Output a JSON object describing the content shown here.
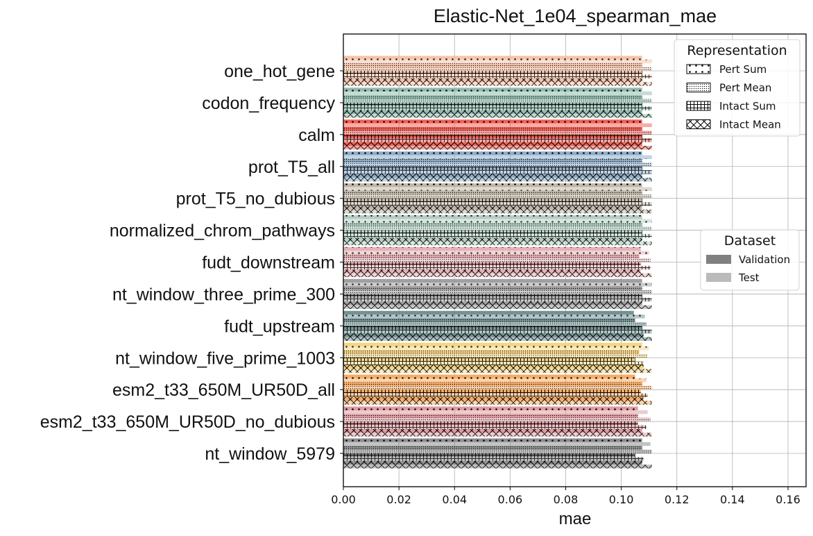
{
  "chart_data": {
    "type": "bar",
    "orientation": "horizontal",
    "title": "Elastic-Net_1e04_spearman_mae",
    "xlabel": "mae",
    "ylabel": "",
    "xlim": [
      0,
      0.1665
    ],
    "xticks": [
      "0.00",
      "0.02",
      "0.04",
      "0.06",
      "0.08",
      "0.10",
      "0.12",
      "0.14",
      "0.16"
    ],
    "xtick_values": [
      0,
      0.02,
      0.04,
      0.06,
      0.08,
      0.1,
      0.12,
      0.14,
      0.16
    ],
    "grid": true,
    "categories": [
      "one_hot_gene",
      "codon_frequency",
      "calm",
      "prot_T5_all",
      "prot_T5_no_dubious",
      "normalized_chrom_pathways",
      "fudt_downstream",
      "nt_window_three_prime_300",
      "fudt_upstream",
      "nt_window_five_prime_1003",
      "esm2_t33_650M_UR50D_all",
      "esm2_t33_650M_UR50D_no_dubious",
      "nt_window_5979"
    ],
    "category_colors": [
      "#f4b89a",
      "#7fb0a0",
      "#f0463a",
      "#7b9fbf",
      "#b7aa98",
      "#a7c7b7",
      "#e3a5a9",
      "#8f8f8f",
      "#5a7f80",
      "#f3cf70",
      "#f79d4a",
      "#d98b90",
      "#7b7b7b"
    ],
    "representations": [
      "Pert Sum",
      "Pert Mean",
      "Intact Sum",
      "Intact Mean"
    ],
    "series": [
      {
        "name": "Pert Sum",
        "dataset": "Validation",
        "values": [
          0.1075,
          0.1075,
          0.1075,
          0.1075,
          0.1075,
          0.1075,
          0.107,
          0.1075,
          0.1045,
          0.1075,
          0.105,
          0.106,
          0.1075
        ]
      },
      {
        "name": "Pert Sum",
        "dataset": "Test",
        "values": [
          0.111,
          0.111,
          0.111,
          0.111,
          0.111,
          0.111,
          0.11,
          0.111,
          0.1085,
          0.11,
          0.109,
          0.1095,
          0.1105
        ]
      },
      {
        "name": "Pert Mean",
        "dataset": "Validation",
        "values": [
          0.1075,
          0.1075,
          0.1075,
          0.1075,
          0.1075,
          0.1075,
          0.1065,
          0.1075,
          0.105,
          0.1065,
          0.1075,
          0.106,
          0.1075
        ]
      },
      {
        "name": "Pert Mean",
        "dataset": "Test",
        "values": [
          0.111,
          0.111,
          0.111,
          0.111,
          0.111,
          0.111,
          0.1105,
          0.111,
          0.109,
          0.1095,
          0.111,
          0.1105,
          0.111
        ]
      },
      {
        "name": "Intact Sum",
        "dataset": "Validation",
        "values": [
          0.1075,
          0.1075,
          0.1075,
          0.1075,
          0.1075,
          0.1075,
          0.107,
          0.1075,
          0.1075,
          0.105,
          0.107,
          0.106,
          0.105
        ]
      },
      {
        "name": "Intact Sum",
        "dataset": "Test",
        "values": [
          0.111,
          0.111,
          0.111,
          0.111,
          0.111,
          0.111,
          0.1105,
          0.111,
          0.111,
          0.108,
          0.1095,
          0.109,
          0.108
        ]
      },
      {
        "name": "Intact Mean",
        "dataset": "Validation",
        "values": [
          0.1075,
          0.1075,
          0.1075,
          0.1075,
          0.1075,
          0.1075,
          0.107,
          0.1075,
          0.108,
          0.108,
          0.108,
          0.1075,
          0.1075
        ]
      },
      {
        "name": "Intact Mean",
        "dataset": "Test",
        "values": [
          0.111,
          0.111,
          0.111,
          0.111,
          0.111,
          0.111,
          0.111,
          0.111,
          0.111,
          0.111,
          0.111,
          0.111,
          0.111
        ]
      }
    ],
    "legend_representation": {
      "title": "Representation",
      "placement": "top-right",
      "entries": [
        {
          "label": "Pert Sum",
          "hatch": "dots"
        },
        {
          "label": "Pert Mean",
          "hatch": "dense-dots"
        },
        {
          "label": "Intact Sum",
          "hatch": "grid"
        },
        {
          "label": "Intact Mean",
          "hatch": "crosshatch"
        }
      ]
    },
    "legend_dataset": {
      "title": "Dataset",
      "placement": "center-right",
      "entries": [
        {
          "label": "Validation",
          "color": "#808080"
        },
        {
          "label": "Test",
          "color": "#bababa"
        }
      ]
    }
  }
}
